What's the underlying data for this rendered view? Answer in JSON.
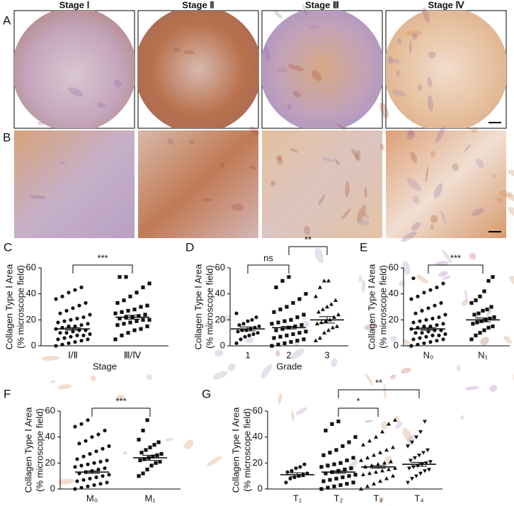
{
  "figure": {
    "panels": [
      "A",
      "B"
    ],
    "columns": [
      "Stage Ⅰ",
      "Stage Ⅱ",
      "Stage Ⅲ",
      "Stage Ⅳ"
    ]
  },
  "chart_data": [
    {
      "type": "dot",
      "panel": "C",
      "ylabel": [
        "Collagen Type Ⅰ Area",
        "(% microscope field)"
      ],
      "xlabel": "Stage",
      "categories": [
        "Ⅰ/Ⅱ",
        "Ⅲ/Ⅳ"
      ],
      "markers": [
        "circle",
        "square"
      ],
      "color": "#111111",
      "points": [
        [
          0,
          1,
          2,
          3,
          4,
          5,
          5,
          6,
          7,
          8,
          8,
          9,
          10,
          10,
          11,
          12,
          12,
          13,
          14,
          15,
          15,
          16,
          17,
          18,
          19,
          20,
          21,
          22,
          24,
          25,
          27,
          29,
          31,
          33,
          36,
          38,
          41,
          43,
          45
        ],
        [
          5,
          8,
          10,
          12,
          13,
          15,
          16,
          17,
          18,
          19,
          20,
          20,
          21,
          22,
          22,
          23,
          24,
          25,
          26,
          27,
          28,
          30,
          31,
          33,
          35,
          38,
          41,
          45,
          48,
          53,
          53
        ]
      ],
      "means": [
        13,
        22
      ],
      "sems": [
        1,
        1.5
      ],
      "ylim": [
        0,
        60
      ],
      "yticks": [
        0,
        20,
        40,
        60
      ],
      "comparisons": [
        {
          "between": [
            0,
            1
          ],
          "label": "***"
        }
      ]
    },
    {
      "type": "dot",
      "panel": "D",
      "ylabel": [
        "Collagen Type Ⅰ Area",
        "(% microscope field)"
      ],
      "xlabel": "Grade",
      "categories": [
        "1",
        "2",
        "3"
      ],
      "markers": [
        "circle",
        "square",
        "triangle"
      ],
      "color": "#111111",
      "points": [
        [
          2,
          5,
          7,
          8,
          9,
          10,
          11,
          12,
          12,
          13,
          14,
          15,
          16,
          17,
          19,
          20,
          22,
          25
        ],
        [
          0,
          1,
          2,
          3,
          4,
          5,
          6,
          7,
          8,
          9,
          10,
          11,
          12,
          13,
          14,
          15,
          16,
          17,
          18,
          19,
          20,
          22,
          24,
          26,
          28,
          30,
          33,
          36,
          40,
          45,
          50,
          53
        ],
        [
          4,
          6,
          10,
          12,
          14,
          15,
          17,
          18,
          19,
          20,
          22,
          24,
          26,
          28,
          30,
          32,
          35,
          38,
          45,
          50,
          50
        ]
      ],
      "means": [
        13,
        14,
        20
      ],
      "sems": [
        1.5,
        1,
        2.5
      ],
      "ylim": [
        0,
        60
      ],
      "yticks": [
        0,
        20,
        40,
        60
      ],
      "comparisons": [
        {
          "between": [
            0,
            1
          ],
          "label": "ns"
        },
        {
          "between": [
            1,
            2
          ],
          "label": "**"
        }
      ]
    },
    {
      "type": "dot",
      "panel": "E",
      "ylabel": [
        "Collagen Type Ⅰ Area",
        "(% microscope field)"
      ],
      "categories": [
        "N₀",
        "N₁"
      ],
      "markers": [
        "circle",
        "square"
      ],
      "color": "#111111",
      "points": [
        [
          0,
          1,
          2,
          3,
          4,
          5,
          5,
          6,
          7,
          8,
          8,
          9,
          10,
          10,
          11,
          12,
          12,
          13,
          14,
          15,
          15,
          16,
          17,
          18,
          19,
          20,
          21,
          22,
          24,
          25,
          27,
          29,
          31,
          33,
          36,
          38,
          41,
          43,
          45,
          48,
          52
        ],
        [
          5,
          8,
          10,
          12,
          14,
          15,
          17,
          18,
          19,
          20,
          21,
          22,
          24,
          25,
          27,
          28,
          30,
          33,
          35,
          38,
          42,
          50,
          53
        ]
      ],
      "means": [
        13,
        20
      ],
      "sems": [
        1,
        1.5
      ],
      "ylim": [
        0,
        60
      ],
      "yticks": [
        0,
        20,
        40,
        60
      ],
      "comparisons": [
        {
          "between": [
            0,
            1
          ],
          "label": "***"
        }
      ]
    },
    {
      "type": "dot",
      "panel": "F",
      "ylabel": [
        "Collagen Type Ⅰ Area",
        "(% microscope field)"
      ],
      "categories": [
        "M₀",
        "M₁"
      ],
      "markers": [
        "circle",
        "square"
      ],
      "color": "#111111",
      "points": [
        [
          0,
          1,
          2,
          3,
          4,
          5,
          6,
          7,
          8,
          9,
          10,
          11,
          12,
          13,
          14,
          15,
          16,
          17,
          18,
          19,
          20,
          21,
          22,
          23,
          25,
          27,
          29,
          31,
          33,
          35,
          37,
          40,
          42,
          45,
          48,
          50,
          53
        ],
        [
          10,
          12,
          15,
          18,
          20,
          21,
          22,
          23,
          24,
          25,
          26,
          27,
          28,
          30,
          32,
          34,
          36,
          38,
          45,
          53
        ]
      ],
      "means": [
        13,
        24
      ],
      "sems": [
        1,
        2
      ],
      "ylim": [
        0,
        60
      ],
      "yticks": [
        0,
        20,
        40,
        60
      ],
      "comparisons": [
        {
          "between": [
            0,
            1
          ],
          "label": "***"
        }
      ]
    },
    {
      "type": "dot",
      "panel": "G",
      "ylabel": [
        "Collagen Type Ⅰ Area",
        "(% microscope field)"
      ],
      "categories": [
        "T₁",
        "T₂",
        "T₃",
        "T₄"
      ],
      "markers": [
        "circle",
        "square",
        "triangle",
        "triangle-down"
      ],
      "color": "#111111",
      "points": [
        [
          5,
          8,
          9,
          10,
          11,
          12,
          13,
          14,
          16,
          17,
          19
        ],
        [
          0,
          1,
          2,
          3,
          4,
          5,
          6,
          7,
          8,
          9,
          10,
          11,
          12,
          13,
          14,
          15,
          16,
          17,
          18,
          19,
          20,
          22,
          24,
          26,
          28,
          30,
          33,
          36,
          40,
          45,
          50,
          52
        ],
        [
          0,
          2,
          4,
          6,
          8,
          10,
          11,
          12,
          13,
          14,
          15,
          16,
          17,
          18,
          19,
          20,
          21,
          22,
          24,
          26,
          28,
          30,
          32,
          34,
          37,
          40,
          44,
          50,
          53
        ],
        [
          5,
          8,
          10,
          12,
          14,
          15,
          16,
          17,
          18,
          19,
          20,
          21,
          22,
          24,
          26,
          28,
          30,
          33,
          36,
          40,
          44,
          52
        ]
      ],
      "means": [
        11,
        13,
        17,
        19
      ],
      "sems": [
        1.5,
        1,
        1,
        1.5
      ],
      "ylim": [
        0,
        60
      ],
      "yticks": [
        0,
        20,
        40,
        60
      ],
      "comparisons": [
        {
          "between": [
            1,
            2
          ],
          "label": "*"
        },
        {
          "between": [
            1,
            3
          ],
          "label": "**"
        }
      ]
    }
  ]
}
